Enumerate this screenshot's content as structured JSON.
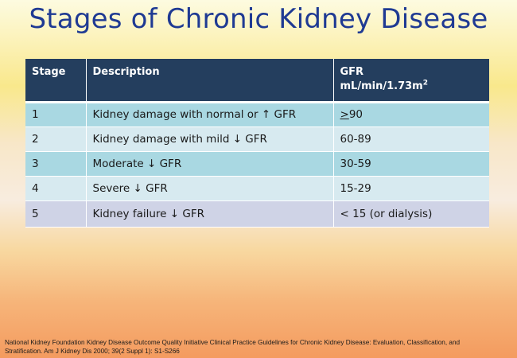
{
  "slide": {
    "title": "Stages of Chronic Kidney Disease",
    "table": {
      "headers": {
        "stage": "Stage",
        "description": "Description",
        "gfr_line1": "GFR",
        "gfr_line2_base": "mL/min/1.73m",
        "gfr_line2_sup": "2"
      },
      "rows": [
        {
          "stage": "1",
          "description": "Kidney damage with normal or ↑ GFR",
          "gfr_symbol": ">",
          "gfr_value": "90"
        },
        {
          "stage": "2",
          "description": "Kidney damage with mild ↓ GFR",
          "gfr": "60-89"
        },
        {
          "stage": "3",
          "description": "Moderate ↓ GFR",
          "gfr": "30-59"
        },
        {
          "stage": "4",
          "description": "Severe ↓ GFR",
          "gfr": "15-29"
        },
        {
          "stage": "5",
          "description": "Kidney failure ↓ GFR",
          "gfr": "< 15 (or dialysis)"
        }
      ]
    },
    "footnote": "National Kidney Foundation Kidney Disease Outcome Quality Initiative Clinical Practice Guidelines for Chronic Kidney Disease: Evaluation, Classification, and Stratification. Am J Kidney Dis 2000; 39(2 Suppl 1): S1-S266"
  }
}
